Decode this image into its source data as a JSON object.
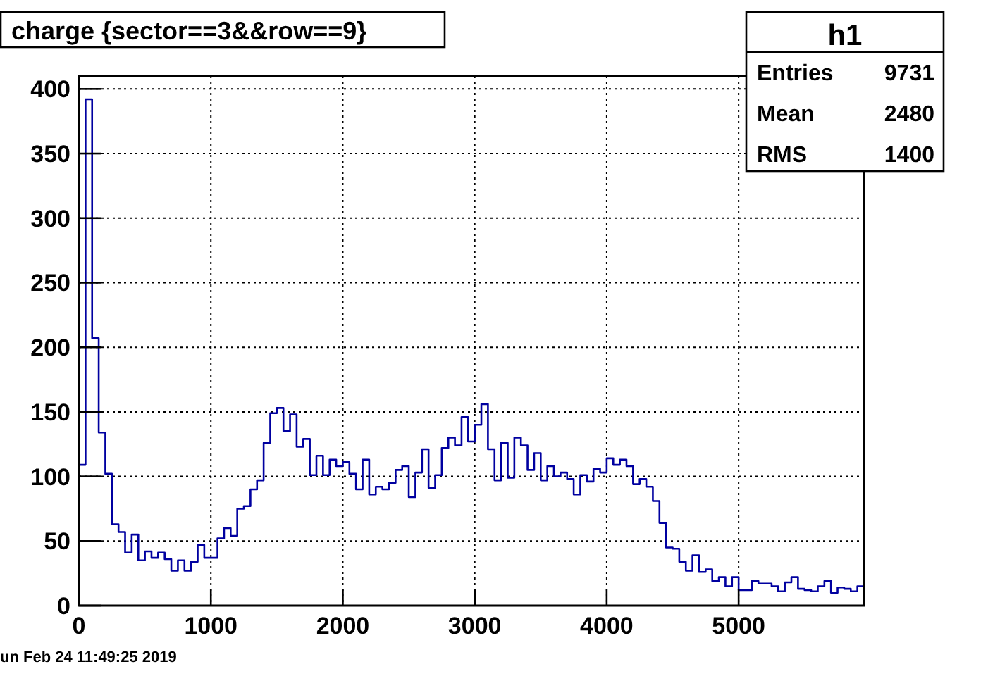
{
  "chart_data": {
    "type": "histogram",
    "title": "charge {sector==3&&row==9}",
    "bins": [
      0,
      50,
      100,
      150,
      200,
      250,
      300,
      350,
      400,
      450,
      500,
      550,
      600,
      650,
      700,
      750,
      800,
      850,
      900,
      950,
      1000,
      1050,
      1100,
      1150,
      1200,
      1250,
      1300,
      1350,
      1400,
      1450,
      1500,
      1550,
      1600,
      1650,
      1700,
      1750,
      1800,
      1850,
      1900,
      1950,
      2000,
      2050,
      2100,
      2150,
      2200,
      2250,
      2300,
      2350,
      2400,
      2450,
      2500,
      2550,
      2600,
      2650,
      2700,
      2750,
      2800,
      2850,
      2900,
      2950,
      3000,
      3050,
      3100,
      3150,
      3200,
      3250,
      3300,
      3350,
      3400,
      3450,
      3500,
      3550,
      3600,
      3650,
      3700,
      3750,
      3800,
      3850,
      3900,
      3950,
      4000,
      4050,
      4100,
      4150,
      4200,
      4250,
      4300,
      4350,
      4400,
      4450,
      4500,
      4550,
      4600,
      4650,
      4700,
      4750,
      4800,
      4850,
      4900,
      4950,
      5000,
      5050,
      5100,
      5150,
      5200,
      5250,
      5300,
      5350,
      5400,
      5450,
      5500,
      5550,
      5600,
      5650,
      5700,
      5750,
      5800,
      5850,
      5900,
      5950
    ],
    "values": [
      109,
      392,
      207,
      134,
      102,
      63,
      57,
      41,
      55,
      35,
      42,
      37,
      41,
      36,
      27,
      35,
      27,
      34,
      47,
      37,
      37,
      52,
      60,
      54,
      75,
      77,
      90,
      97,
      126,
      149,
      153,
      135,
      148,
      123,
      129,
      101,
      116,
      101,
      113,
      108,
      111,
      102,
      90,
      113,
      86,
      92,
      90,
      95,
      105,
      108,
      84,
      103,
      121,
      91,
      101,
      122,
      130,
      124,
      146,
      127,
      140,
      156,
      121,
      97,
      126,
      99,
      130,
      124,
      105,
      118,
      97,
      108,
      100,
      103,
      98,
      86,
      101,
      96,
      106,
      103,
      114,
      109,
      113,
      108,
      94,
      98,
      92,
      81,
      64,
      45,
      44,
      34,
      27,
      39,
      26,
      28,
      19,
      22,
      15,
      22,
      12,
      12,
      19,
      17,
      17,
      15,
      11,
      18,
      22,
      13,
      12,
      11,
      15,
      19,
      10,
      14,
      13,
      11,
      15
    ],
    "color": "#0000a0",
    "xlim": [
      0,
      5950
    ],
    "xticks": [
      0,
      1000,
      2000,
      3000,
      4000,
      5000
    ],
    "ylim": [
      0,
      410
    ],
    "yticks": [
      0,
      50,
      100,
      150,
      200,
      250,
      300,
      350,
      400
    ],
    "grid": true,
    "annotations": [
      "h1",
      "Entries 9731",
      "Mean 2480",
      "RMS 1400",
      "un Feb 24 11:49:25 2019"
    ]
  }
}
